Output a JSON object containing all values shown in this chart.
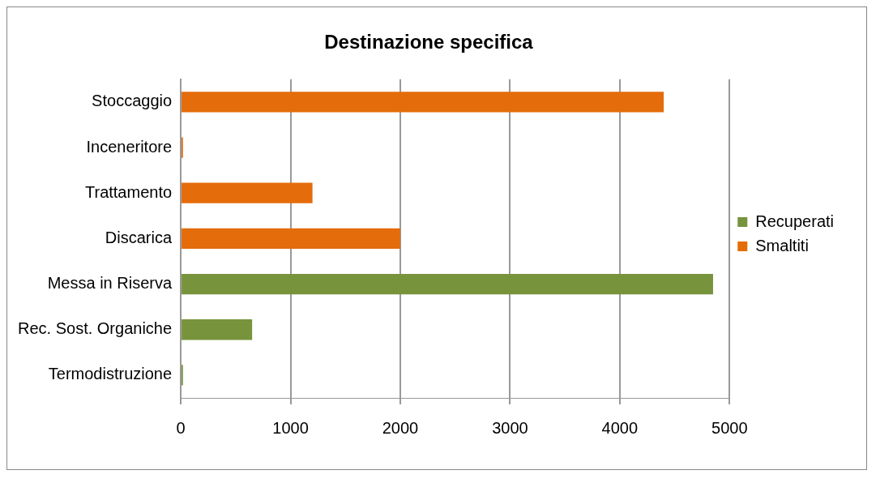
{
  "chart_data": {
    "type": "bar",
    "orientation": "horizontal",
    "stacked": true,
    "title": "Destinazione specifica",
    "categories": [
      "Stoccaggio",
      "Inceneritore",
      "Trattamento",
      "Discarica",
      "Messa in Riserva",
      "Rec. Sost. Organiche",
      "Termodistruzione"
    ],
    "series": [
      {
        "name": "Recuperati",
        "color": "#77933c",
        "values": [
          null,
          null,
          null,
          null,
          4850,
          650,
          20
        ]
      },
      {
        "name": "Smaltiti",
        "color": "#e46c0a",
        "values": [
          4400,
          20,
          1200,
          2000,
          null,
          null,
          null
        ]
      }
    ],
    "xlim": [
      0,
      5000
    ],
    "xticks": [
      0,
      1000,
      2000,
      3000,
      4000,
      5000
    ],
    "grid": "x",
    "legend": "right"
  }
}
